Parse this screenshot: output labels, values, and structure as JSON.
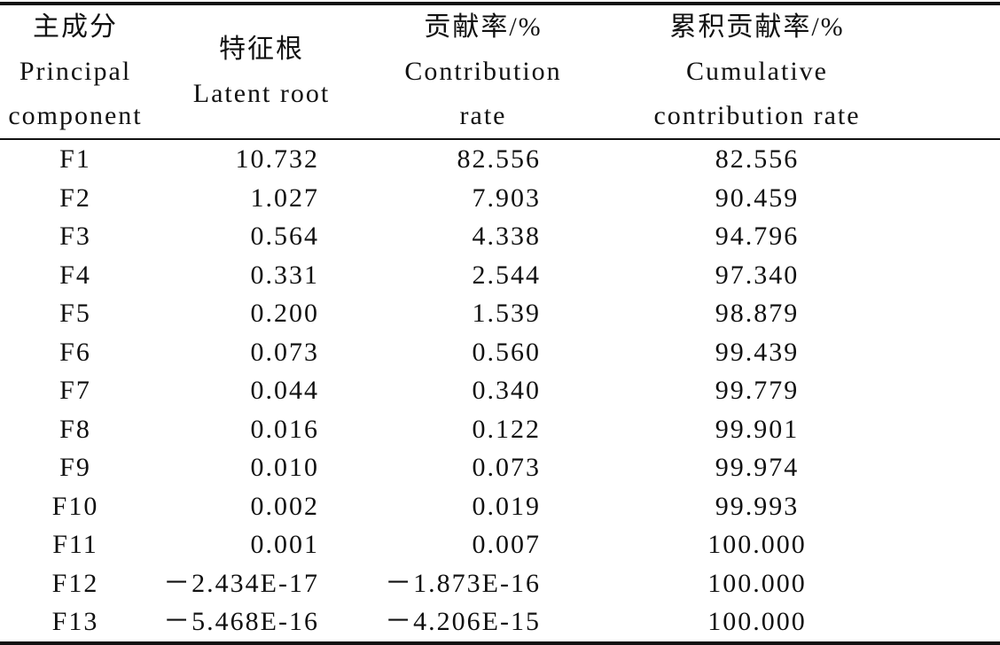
{
  "table": {
    "headers": [
      [
        "主成分",
        "Principal",
        "component"
      ],
      [
        "特征根",
        "Latent root"
      ],
      [
        "贡献率/%",
        "Contribution",
        "rate"
      ],
      [
        "累积贡献率/%",
        "Cumulative",
        "contribution rate"
      ]
    ],
    "rows": [
      [
        "F1",
        "10.732",
        "82.556",
        "82.556"
      ],
      [
        "F2",
        "1.027",
        "7.903",
        "90.459"
      ],
      [
        "F3",
        "0.564",
        "4.338",
        "94.796"
      ],
      [
        "F4",
        "0.331",
        "2.544",
        "97.340"
      ],
      [
        "F5",
        "0.200",
        "1.539",
        "98.879"
      ],
      [
        "F6",
        "0.073",
        "0.560",
        "99.439"
      ],
      [
        "F7",
        "0.044",
        "0.340",
        "99.779"
      ],
      [
        "F8",
        "0.016",
        "0.122",
        "99.901"
      ],
      [
        "F9",
        "0.010",
        "0.073",
        "99.974"
      ],
      [
        "F10",
        "0.002",
        "0.019",
        "99.993"
      ],
      [
        "F11",
        "0.001",
        "0.007",
        "100.000"
      ],
      [
        "F12",
        "－2.434E-17",
        "－1.873E-16",
        "100.000"
      ],
      [
        "F13",
        "－5.468E-16",
        "－4.206E-15",
        "100.000"
      ]
    ]
  }
}
